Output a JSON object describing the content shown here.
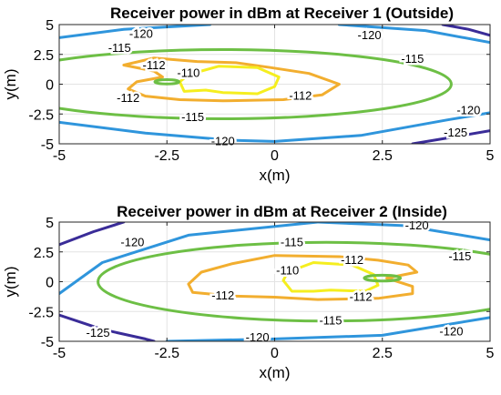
{
  "colors": {
    "level_-125": "#3a2c98",
    "level_-120": "#2f95dc",
    "level_-115": "#6dbf45",
    "level_-112": "#f2ae2f",
    "level_-110": "#f5ee1f",
    "level_-108": "#6dbf45"
  },
  "chart_data": [
    {
      "type": "contour",
      "title": "Receiver power in dBm at Receiver 1 (Outside)",
      "xlabel": "x(m)",
      "ylabel": "y(m)",
      "xlim": [
        -5,
        5
      ],
      "ylim": [
        -5,
        5
      ],
      "xticks": [
        "-5",
        "-2.5",
        "0",
        "2.5",
        "5"
      ],
      "yticks": [
        "5",
        "2.5",
        "0",
        "-2.5",
        "-5"
      ],
      "grid": true,
      "levels": [
        -125,
        -120,
        -115,
        -112,
        -110
      ],
      "contours": [
        {
          "level": -125,
          "label": "-125",
          "path": [
            [
              3.2,
              -5
            ],
            [
              4.2,
              -4.4
            ],
            [
              5,
              -3.9
            ]
          ],
          "label_at": [
            4.2,
            -4.1
          ]
        },
        {
          "level": -125,
          "label": "",
          "path": [
            [
              3.9,
              5
            ],
            [
              4.5,
              4.6
            ],
            [
              5,
              4.1
            ]
          ],
          "label_at": null
        },
        {
          "level": -120,
          "label": "-120",
          "path": [
            [
              -5,
              3.9
            ],
            [
              -3.5,
              4.6
            ],
            [
              -1.5,
              5
            ]
          ],
          "label_at": [
            -3.1,
            4.2
          ]
        },
        {
          "level": -120,
          "label": "-120",
          "path": [
            [
              1.5,
              5
            ],
            [
              3.5,
              4.5
            ],
            [
              5,
              3.5
            ]
          ],
          "label_at": [
            2.2,
            4.1
          ]
        },
        {
          "level": -120,
          "label": "-120",
          "path": [
            [
              -5,
              -3.2
            ],
            [
              -3,
              -4.1
            ],
            [
              -1,
              -4.7
            ],
            [
              0,
              -4.8
            ]
          ],
          "label_at": [
            -1.2,
            -4.8
          ]
        },
        {
          "level": -120,
          "label": "-120",
          "path": [
            [
              0,
              -4.8
            ],
            [
              2,
              -4.3
            ],
            [
              4,
              -3
            ],
            [
              5,
              -2.4
            ]
          ],
          "label_at": [
            4.5,
            -2.2
          ]
        },
        {
          "level": -115,
          "label": "-115",
          "ellipse": {
            "cx": -1.2,
            "cy": 0,
            "rx": 5.3,
            "ry": 2.9
          },
          "label_at": [
            -1.9,
            -2.8
          ]
        },
        {
          "level": -115,
          "label": "-115",
          "extra_label_at": [
            3.2,
            2.1
          ],
          "ellipse": null
        },
        {
          "level": -115,
          "label": "-115",
          "extra_label_at": [
            -3.6,
            3.0
          ],
          "ellipse": null
        },
        {
          "level": -112,
          "label": "-112",
          "path": [
            [
              -3.5,
              1.6
            ],
            [
              -2.8,
              2.2
            ],
            [
              -1.8,
              1.9
            ],
            [
              -0.9,
              1.8
            ],
            [
              -0.1,
              1.4
            ],
            [
              0.8,
              0.9
            ],
            [
              1.5,
              0
            ],
            [
              1.1,
              -0.9
            ],
            [
              0.2,
              -1.3
            ],
            [
              -1.2,
              -1.4
            ],
            [
              -2.2,
              -1.3
            ],
            [
              -3,
              -1
            ],
            [
              -3.4,
              -0.4
            ],
            [
              -3.2,
              0.2
            ],
            [
              -2.6,
              0.6
            ],
            [
              -2.8,
              1.1
            ],
            [
              -3.5,
              1.6
            ]
          ],
          "label_at": [
            -2.8,
            1.55
          ]
        },
        {
          "level": -112,
          "label": "-112",
          "extra_label_at": [
            -3.4,
            -1.2
          ],
          "path": null
        },
        {
          "level": -112,
          "label": "-112",
          "extra_label_at": [
            0.6,
            -1.0
          ],
          "path": null
        },
        {
          "level": -110,
          "label": "-110",
          "path": [
            [
              -2,
              0.8
            ],
            [
              -1.3,
              1.5
            ],
            [
              -0.4,
              1.4
            ],
            [
              0.1,
              0.6
            ],
            [
              0,
              -0.2
            ],
            [
              -0.4,
              -0.8
            ],
            [
              -1.2,
              -0.7
            ],
            [
              -1.6,
              -0.5
            ],
            [
              -2.1,
              -0.6
            ],
            [
              -2.2,
              0.2
            ],
            [
              -2,
              0.8
            ]
          ],
          "label_at": [
            -2.0,
            0.9
          ]
        },
        {
          "level": -108,
          "label": "",
          "ellipse": {
            "cx": -2.5,
            "cy": 0.2,
            "rx": 0.28,
            "ry": 0.18
          },
          "label_at": null
        }
      ]
    },
    {
      "type": "contour",
      "title": "Receiver power in dBm at Receiver 2 (Inside)",
      "xlabel": "x(m)",
      "ylabel": "y(m)",
      "xlim": [
        -5,
        5
      ],
      "ylim": [
        -5,
        5
      ],
      "xticks": [
        "-5",
        "-2.5",
        "0",
        "2.5",
        "5"
      ],
      "yticks": [
        "5",
        "2.5",
        "0",
        "-2.5",
        "-5"
      ],
      "grid": true,
      "levels": [
        -125,
        -120,
        -115,
        -112,
        -110
      ],
      "contours": [
        {
          "level": -125,
          "label": "-125",
          "path": [
            [
              -5,
              -2.8
            ],
            [
              -4,
              -4
            ],
            [
              -3,
              -4.8
            ],
            [
              -2.8,
              -5
            ]
          ],
          "label_at": [
            -4.1,
            -4.3
          ]
        },
        {
          "level": -125,
          "label": "",
          "path": [
            [
              -5,
              3.1
            ],
            [
              -4.2,
              4.2
            ],
            [
              -3.5,
              5
            ]
          ],
          "label_at": null
        },
        {
          "level": -120,
          "label": "-120",
          "path": [
            [
              -5,
              -1
            ],
            [
              -4,
              1.6
            ],
            [
              -2,
              3.9
            ],
            [
              1,
              5
            ]
          ],
          "label_at": [
            -3.3,
            3.3
          ]
        },
        {
          "level": -120,
          "label": "-120",
          "path": [
            [
              1,
              5
            ],
            [
              3,
              4.7
            ],
            [
              5,
              3.5
            ]
          ],
          "label_at": [
            3.3,
            4.7
          ]
        },
        {
          "level": -120,
          "label": "-120",
          "path": [
            [
              -2.5,
              -5
            ],
            [
              0,
              -4.8
            ],
            [
              2.5,
              -4.5
            ],
            [
              5,
              -3
            ]
          ],
          "label_at": [
            -0.4,
            -4.7
          ]
        },
        {
          "level": -120,
          "label": "-120",
          "extra_label_at": [
            4.1,
            -4.2
          ],
          "path": null
        },
        {
          "level": -115,
          "label": "-115",
          "ellipse": {
            "cx": 1.2,
            "cy": 0,
            "rx": 5.3,
            "ry": 3.3
          },
          "label_at": [
            0.4,
            3.3
          ]
        },
        {
          "level": -115,
          "label": "-115",
          "extra_label_at": [
            1.3,
            -3.3
          ],
          "ellipse": null
        },
        {
          "level": -115,
          "label": "-115",
          "extra_label_at": [
            4.3,
            2.1
          ],
          "ellipse": null
        },
        {
          "level": -112,
          "label": "-112",
          "path": [
            [
              -1,
              1.5
            ],
            [
              0,
              2.2
            ],
            [
              1.5,
              2.1
            ],
            [
              2.4,
              1.8
            ],
            [
              3.1,
              1.4
            ],
            [
              3.3,
              0.8
            ],
            [
              2.6,
              0.3
            ],
            [
              3.2,
              -0.4
            ],
            [
              3.2,
              -1
            ],
            [
              2.4,
              -1.4
            ],
            [
              1,
              -1.5
            ],
            [
              0,
              -1.3
            ],
            [
              -1,
              -1.2
            ],
            [
              -1.9,
              -0.9
            ],
            [
              -2,
              -0.2
            ],
            [
              -1.7,
              0.8
            ],
            [
              -1,
              1.5
            ]
          ],
          "label_at": [
            -1.2,
            -1.2
          ]
        },
        {
          "level": -112,
          "label": "-112",
          "extra_label_at": [
            1.8,
            1.8
          ],
          "path": null
        },
        {
          "level": -112,
          "label": "-112",
          "extra_label_at": [
            2.0,
            -1.3
          ],
          "path": null
        },
        {
          "level": -110,
          "label": "-110",
          "path": [
            [
              0.3,
              0.8
            ],
            [
              0.9,
              1.6
            ],
            [
              1.8,
              1.4
            ],
            [
              2.3,
              0.6
            ],
            [
              2.4,
              -0.3
            ],
            [
              2.1,
              -0.8
            ],
            [
              1.3,
              -0.7
            ],
            [
              0.9,
              -0.8
            ],
            [
              0.4,
              -0.8
            ],
            [
              0.2,
              0.1
            ],
            [
              0.3,
              0.8
            ]
          ],
          "label_at": [
            0.3,
            0.9
          ]
        },
        {
          "level": -108,
          "label": "",
          "ellipse": {
            "cx": 2.5,
            "cy": 0.3,
            "rx": 0.42,
            "ry": 0.24
          },
          "label_at": null
        }
      ]
    }
  ]
}
